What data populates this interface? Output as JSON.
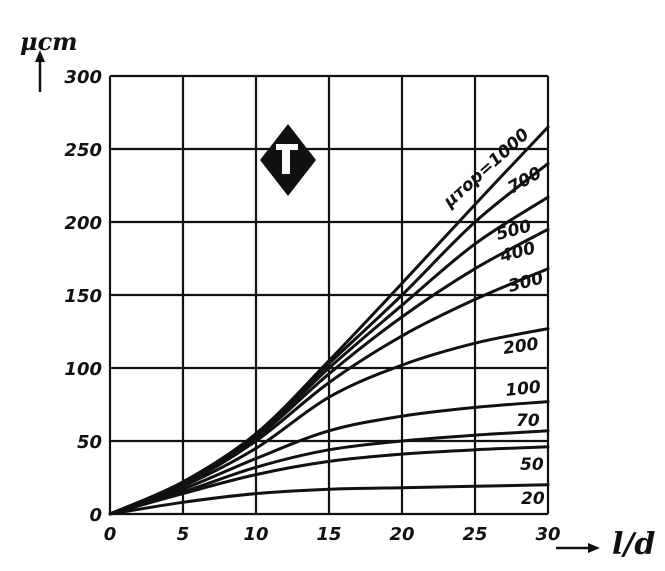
{
  "chart_data": {
    "type": "line",
    "title": "",
    "xlabel": "l/d",
    "ylabel": "μст",
    "xlim": [
      0,
      30
    ],
    "ylim": [
      0,
      300
    ],
    "x_ticks": [
      "0",
      "5",
      "10",
      "15",
      "20",
      "25",
      "30"
    ],
    "y_ticks": [
      "0",
      "50",
      "100",
      "150",
      "200",
      "250",
      "300"
    ],
    "grid": true,
    "legend": "none",
    "x": [
      0,
      5,
      10,
      15,
      20,
      25,
      30
    ],
    "series": [
      {
        "name": "μтор=1000",
        "values": [
          0,
          22,
          55,
          105,
          158,
          212,
          265
        ]
      },
      {
        "name": "700",
        "values": [
          0,
          22,
          55,
          103,
          150,
          200,
          240
        ]
      },
      {
        "name": "500",
        "values": [
          0,
          21,
          53,
          100,
          143,
          185,
          217
        ]
      },
      {
        "name": "400",
        "values": [
          0,
          21,
          52,
          96,
          135,
          168,
          195
        ]
      },
      {
        "name": "300",
        "values": [
          0,
          20,
          50,
          90,
          122,
          147,
          168
        ]
      },
      {
        "name": "200",
        "values": [
          0,
          19,
          45,
          80,
          102,
          117,
          127
        ]
      },
      {
        "name": "100",
        "values": [
          0,
          17,
          38,
          57,
          67,
          73,
          77
        ]
      },
      {
        "name": "70",
        "values": [
          0,
          15,
          32,
          44,
          50,
          54,
          57
        ]
      },
      {
        "name": "50",
        "values": [
          0,
          14,
          27,
          36,
          41,
          44,
          46
        ]
      },
      {
        "name": "20",
        "values": [
          0,
          8,
          14,
          17,
          18,
          19,
          20
        ]
      }
    ]
  }
}
